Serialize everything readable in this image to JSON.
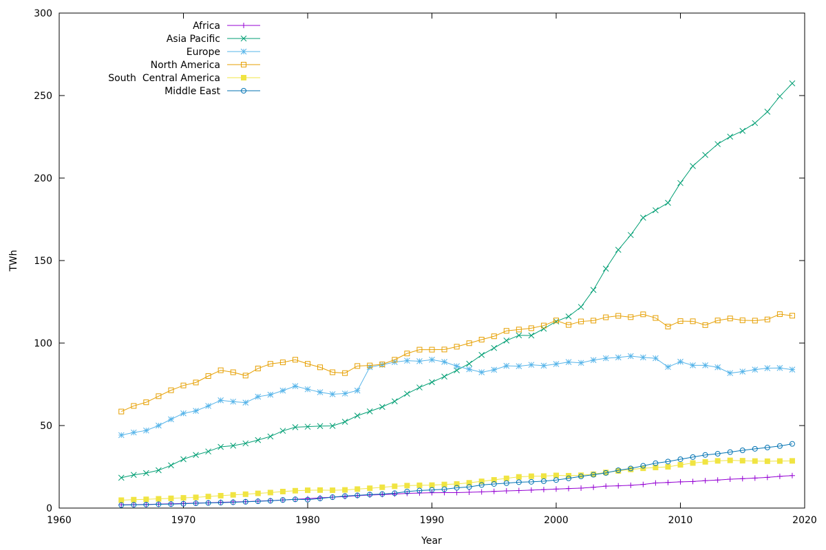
{
  "chart_data": {
    "type": "line",
    "title": "",
    "xlabel": "Year",
    "ylabel": "TWh",
    "xlim": [
      1960,
      2020
    ],
    "ylim": [
      0,
      300
    ],
    "xticks": [
      1960,
      1970,
      1980,
      1990,
      2000,
      2010,
      2020
    ],
    "yticks": [
      0,
      50,
      100,
      150,
      200,
      250,
      300
    ],
    "grid": false,
    "legend_position": "top-left",
    "x": [
      1965,
      1966,
      1967,
      1968,
      1969,
      1970,
      1971,
      1972,
      1973,
      1974,
      1975,
      1976,
      1977,
      1978,
      1979,
      1980,
      1981,
      1982,
      1983,
      1984,
      1985,
      1986,
      1987,
      1988,
      1989,
      1990,
      1991,
      1992,
      1993,
      1994,
      1995,
      1996,
      1997,
      1998,
      1999,
      2000,
      2001,
      2002,
      2003,
      2004,
      2005,
      2006,
      2007,
      2008,
      2009,
      2010,
      2011,
      2012,
      2013,
      2014,
      2015,
      2016,
      2017,
      2018,
      2019
    ],
    "series": [
      {
        "name": "Africa",
        "color": "#9400d3",
        "marker": "plus",
        "values": [
          2.0,
          2.1,
          2.2,
          2.4,
          2.6,
          2.8,
          3.0,
          3.2,
          3.5,
          3.7,
          3.9,
          4.2,
          4.5,
          4.9,
          5.3,
          5.7,
          6.2,
          6.6,
          7.0,
          7.5,
          7.9,
          8.2,
          8.5,
          8.9,
          9.1,
          9.3,
          9.4,
          9.4,
          9.6,
          9.8,
          10.1,
          10.4,
          10.6,
          10.9,
          11.2,
          11.5,
          11.8,
          12.1,
          12.6,
          13.3,
          13.5,
          13.8,
          14.3,
          15.2,
          15.5,
          15.9,
          16.1,
          16.6,
          17.0,
          17.5,
          17.8,
          18.2,
          18.6,
          19.2,
          19.7
        ]
      },
      {
        "name": "Asia Pacific",
        "color": "#009e73",
        "marker": "cross",
        "values": [
          18.4,
          20.1,
          21.2,
          22.9,
          25.9,
          29.6,
          32.2,
          34.3,
          37.1,
          37.8,
          39.2,
          41.2,
          43.4,
          46.8,
          49.0,
          49.3,
          49.7,
          49.8,
          52.3,
          56.0,
          58.6,
          61.3,
          64.7,
          69.3,
          73.1,
          76.3,
          79.7,
          83.5,
          87.5,
          92.8,
          97.0,
          101.5,
          104.7,
          104.6,
          108.7,
          113.1,
          116.1,
          121.9,
          132.2,
          145.1,
          156.5,
          165.5,
          176.0,
          180.5,
          185.0,
          197.0,
          207.3,
          214.0,
          220.6,
          225.1,
          228.6,
          233.3,
          240.2,
          249.5,
          257.4
        ]
      },
      {
        "name": "Europe",
        "color": "#56b4e9",
        "marker": "star",
        "values": [
          44.2,
          45.8,
          47.0,
          50.0,
          53.8,
          57.4,
          58.9,
          61.9,
          65.3,
          64.5,
          63.9,
          67.5,
          68.7,
          71.2,
          73.9,
          72.0,
          70.2,
          69.0,
          69.4,
          71.2,
          85.4,
          86.8,
          88.5,
          89.3,
          89.0,
          89.9,
          88.6,
          86.0,
          84.1,
          82.3,
          83.8,
          86.2,
          86.0,
          86.8,
          86.3,
          87.3,
          88.5,
          88.0,
          89.7,
          90.8,
          91.3,
          92.1,
          91.3,
          90.8,
          85.5,
          88.7,
          86.5,
          86.5,
          85.3,
          81.8,
          82.7,
          83.9,
          84.8,
          84.9,
          83.9
        ]
      },
      {
        "name": "North America",
        "color": "#e69f00",
        "marker": "open-square",
        "values": [
          58.5,
          61.9,
          64.1,
          67.8,
          71.4,
          74.3,
          76.1,
          80.0,
          83.5,
          82.3,
          80.3,
          84.6,
          87.4,
          88.3,
          89.9,
          87.4,
          85.3,
          82.3,
          81.8,
          86.1,
          86.4,
          87.1,
          89.9,
          93.7,
          96.0,
          96.0,
          96.1,
          97.8,
          99.9,
          102.1,
          104.1,
          107.4,
          108.2,
          109.0,
          110.6,
          113.7,
          111.0,
          113.1,
          113.6,
          115.6,
          116.5,
          115.7,
          117.4,
          115.2,
          110.0,
          113.3,
          113.2,
          110.9,
          113.7,
          114.9,
          113.8,
          113.6,
          114.3,
          117.5,
          116.6
        ]
      },
      {
        "name": "South  Central America",
        "color": "#f0e442",
        "marker": "filled-square",
        "values": [
          4.8,
          5.1,
          5.3,
          5.6,
          5.9,
          6.2,
          6.5,
          7.0,
          7.5,
          8.0,
          8.4,
          8.9,
          9.4,
          10.0,
          10.5,
          10.8,
          10.9,
          10.8,
          11.0,
          11.5,
          12.0,
          12.6,
          13.2,
          13.6,
          13.8,
          13.9,
          14.3,
          14.6,
          15.3,
          16.2,
          17.1,
          18.0,
          18.9,
          19.3,
          19.4,
          19.8,
          19.6,
          19.9,
          20.5,
          21.6,
          22.5,
          23.4,
          24.1,
          24.6,
          25.0,
          26.2,
          27.3,
          28.0,
          28.6,
          28.9,
          28.7,
          28.5,
          28.4,
          28.5,
          28.6
        ]
      },
      {
        "name": "Middle East",
        "color": "#0072b2",
        "marker": "open-circle",
        "values": [
          1.8,
          2.0,
          2.1,
          2.3,
          2.4,
          2.6,
          2.9,
          3.1,
          3.3,
          3.5,
          3.8,
          4.1,
          4.4,
          4.9,
          5.3,
          5.1,
          5.8,
          6.6,
          7.3,
          7.7,
          8.2,
          8.5,
          9.0,
          10.0,
          10.6,
          11.0,
          11.4,
          12.3,
          12.8,
          14.0,
          14.6,
          15.1,
          15.7,
          15.9,
          16.3,
          17.0,
          18.0,
          19.2,
          20.2,
          21.3,
          22.9,
          24.0,
          25.6,
          27.2,
          28.2,
          29.6,
          30.9,
          32.2,
          32.9,
          33.9,
          35.0,
          35.9,
          36.7,
          37.6,
          38.9
        ]
      }
    ]
  }
}
